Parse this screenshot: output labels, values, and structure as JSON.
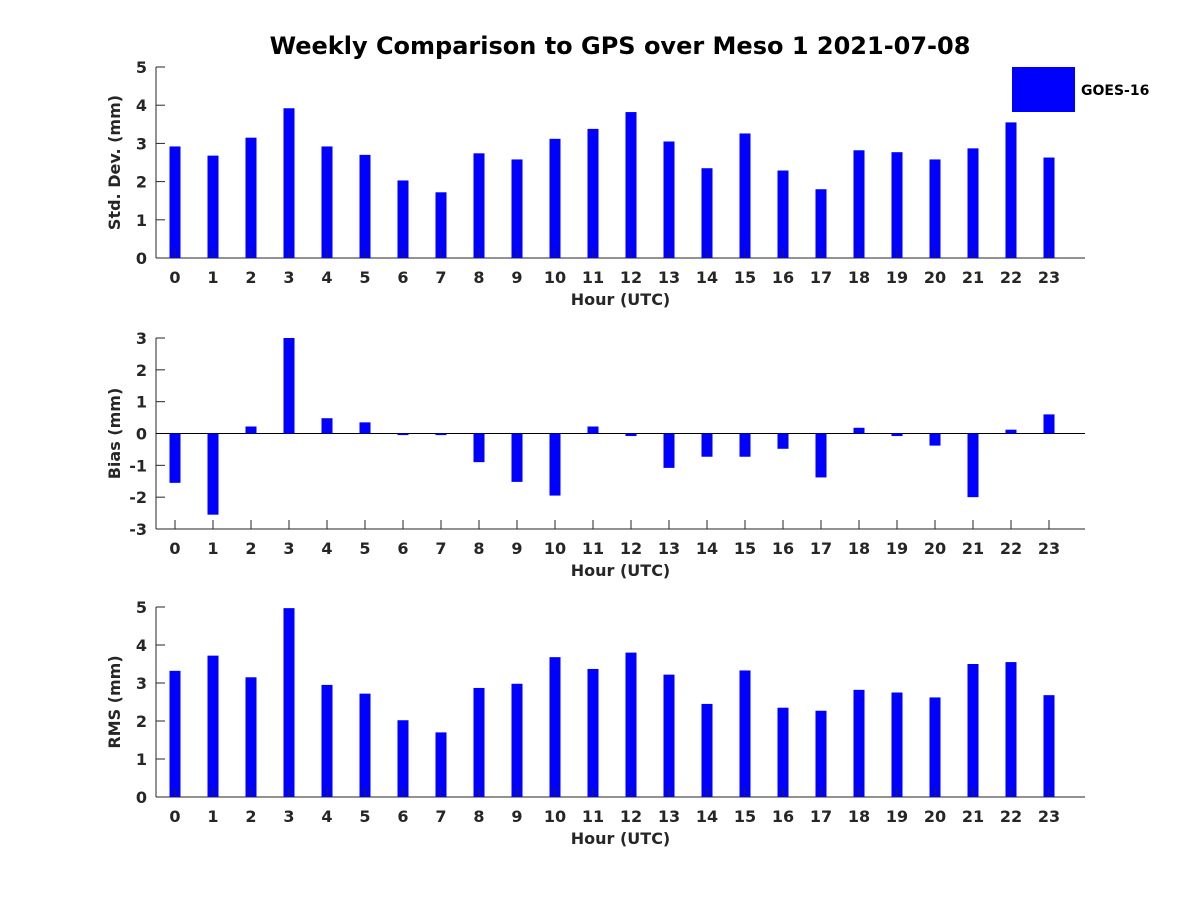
{
  "title": "Weekly Comparison to GPS over Meso 1 2021-07-08",
  "legend": {
    "label": "GOES-16",
    "color": "#0000ff"
  },
  "chart_data": [
    {
      "type": "bar",
      "series_name": "GOES-16",
      "xlabel": "Hour (UTC)",
      "ylabel": "Std. Dev. (mm)",
      "ylim": [
        0,
        5
      ],
      "yticks": [
        0,
        1,
        2,
        3,
        4,
        5
      ],
      "categories": [
        "0",
        "1",
        "2",
        "3",
        "4",
        "5",
        "6",
        "7",
        "8",
        "9",
        "10",
        "11",
        "12",
        "13",
        "14",
        "15",
        "16",
        "17",
        "18",
        "19",
        "20",
        "21",
        "22",
        "23"
      ],
      "values": [
        2.92,
        2.68,
        3.15,
        3.92,
        2.92,
        2.7,
        2.03,
        1.72,
        2.74,
        2.58,
        3.12,
        3.38,
        3.82,
        3.05,
        2.35,
        3.26,
        2.29,
        1.8,
        2.82,
        2.77,
        2.58,
        2.87,
        3.55,
        2.63
      ]
    },
    {
      "type": "bar",
      "series_name": "GOES-16",
      "xlabel": "Hour (UTC)",
      "ylabel": "Bias (mm)",
      "ylim": [
        -3,
        3
      ],
      "yticks": [
        -3,
        -2,
        -1,
        0,
        1,
        2,
        3
      ],
      "categories": [
        "0",
        "1",
        "2",
        "3",
        "4",
        "5",
        "6",
        "7",
        "8",
        "9",
        "10",
        "11",
        "12",
        "13",
        "14",
        "15",
        "16",
        "17",
        "18",
        "19",
        "20",
        "21",
        "22",
        "23"
      ],
      "values": [
        -1.55,
        -2.55,
        0.22,
        3.0,
        0.48,
        0.35,
        -0.05,
        -0.05,
        -0.9,
        -1.52,
        -1.95,
        0.22,
        -0.08,
        -1.08,
        -0.73,
        -0.73,
        -0.48,
        -1.38,
        0.18,
        -0.08,
        -0.38,
        -2.0,
        0.12,
        0.6
      ]
    },
    {
      "type": "bar",
      "series_name": "GOES-16",
      "xlabel": "Hour (UTC)",
      "ylabel": "RMS (mm)",
      "ylim": [
        0,
        5
      ],
      "yticks": [
        0,
        1,
        2,
        3,
        4,
        5
      ],
      "categories": [
        "0",
        "1",
        "2",
        "3",
        "4",
        "5",
        "6",
        "7",
        "8",
        "9",
        "10",
        "11",
        "12",
        "13",
        "14",
        "15",
        "16",
        "17",
        "18",
        "19",
        "20",
        "21",
        "22",
        "23"
      ],
      "values": [
        3.32,
        3.72,
        3.15,
        4.97,
        2.95,
        2.72,
        2.02,
        1.7,
        2.87,
        2.98,
        3.68,
        3.37,
        3.8,
        3.22,
        2.45,
        3.33,
        2.35,
        2.27,
        2.82,
        2.75,
        2.62,
        3.5,
        3.55,
        2.68
      ]
    }
  ]
}
